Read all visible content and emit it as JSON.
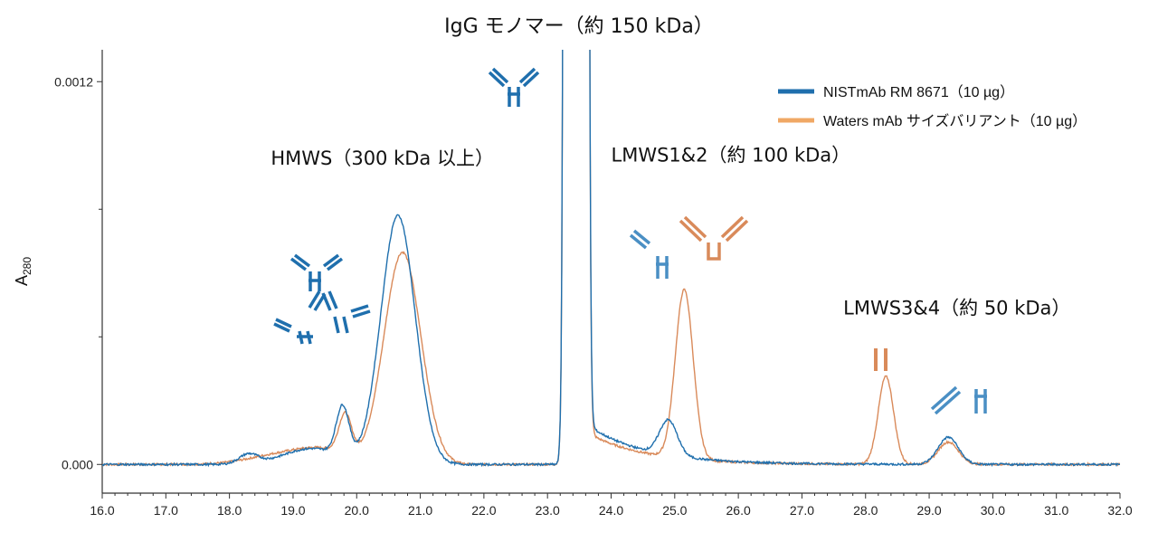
{
  "chart_data": {
    "type": "line",
    "title": "IgG モノマー（約 150 kDa）",
    "ylabel_main": "A",
    "ylabel_sub": "280",
    "xlim": [
      16.0,
      32.0
    ],
    "ylim": [
      -9e-05,
      0.0013
    ],
    "x_ticks": [
      "16.0",
      "17.0",
      "18.0",
      "19.0",
      "20.0",
      "21.0",
      "22.0",
      "23.0",
      "24.0",
      "25.0",
      "26.0",
      "27.0",
      "28.0",
      "29.0",
      "30.0",
      "31.0",
      "32.0"
    ],
    "y_tick_labels": [
      {
        "value": 0.0,
        "label": "0.000"
      },
      {
        "value": 0.0012,
        "label": "0.0012"
      }
    ],
    "y_minor_ticks": [
      0.0004,
      0.0008
    ],
    "legend_position": "top-right",
    "series": [
      {
        "name": "NISTmAb RM 8671（10 µg）",
        "color": "#1f6fad",
        "peaks": [
          {
            "center": 18.3,
            "height": 3e-05,
            "width": 0.15
          },
          {
            "center": 19.3,
            "height": 5e-05,
            "width": 0.45
          },
          {
            "center": 19.78,
            "height": 0.000155,
            "width": 0.1
          },
          {
            "center": 20.65,
            "height": 0.00078,
            "width": 0.27
          },
          {
            "center": 23.45,
            "height": 0.5,
            "width": 0.062
          },
          {
            "center": 24.9,
            "height": 0.00011,
            "width": 0.14
          },
          {
            "center": 29.3,
            "height": 8.5e-05,
            "width": 0.16
          }
        ],
        "baseline": 0.0,
        "tailSlope": 1.5e-05
      },
      {
        "name": "Waters mAb サイズバリアント（10 µg）",
        "color": "#d98a5a",
        "peaks": [
          {
            "center": 18.8,
            "height": 3e-05,
            "width": 0.5
          },
          {
            "center": 19.5,
            "height": 4e-05,
            "width": 0.4
          },
          {
            "center": 19.82,
            "height": 0.000125,
            "width": 0.1
          },
          {
            "center": 20.72,
            "height": 0.000665,
            "width": 0.29
          },
          {
            "center": 23.45,
            "height": 0.5,
            "width": 0.062
          },
          {
            "center": 25.15,
            "height": 0.00053,
            "width": 0.14
          },
          {
            "center": 28.32,
            "height": 0.000275,
            "width": 0.12
          },
          {
            "center": 29.3,
            "height": 7e-05,
            "width": 0.16
          }
        ],
        "baseline": 0.0,
        "tailSlope": 1.2e-05
      }
    ],
    "annotations": [
      {
        "text": "HMWS（300 kDa 以上）",
        "x": 18.65,
        "y": 0.00094
      },
      {
        "text": "LMWS1&2（約 100 kDa）",
        "x": 24.0,
        "y": 0.00095
      },
      {
        "text": "LMWS3&4（約 50 kDa）",
        "x": 27.65,
        "y": 0.00047
      }
    ]
  }
}
